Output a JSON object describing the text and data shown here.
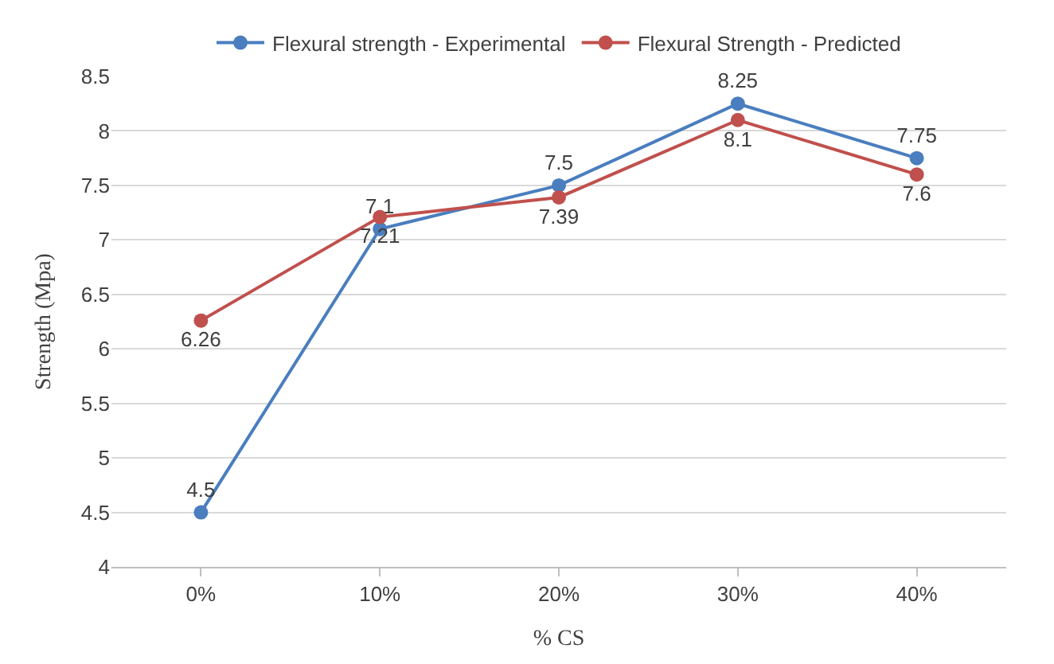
{
  "chart_data": {
    "type": "line",
    "xlabel": "% CS",
    "ylabel": "Strength (Mpa)",
    "categories": [
      "0%",
      "10%",
      "20%",
      "30%",
      "40%"
    ],
    "series": [
      {
        "name": "Flexural strength - Experimental",
        "color": "#4a7ebf",
        "values": [
          4.5,
          7.1,
          7.5,
          8.25,
          7.75
        ]
      },
      {
        "name": "Flexural Strength - Predicted",
        "color": "#c0504d",
        "values": [
          6.26,
          7.21,
          7.39,
          8.1,
          7.6
        ]
      }
    ],
    "ylim": [
      4,
      8.5
    ],
    "yticks": [
      4,
      4.5,
      5,
      5.5,
      6,
      6.5,
      7,
      7.5,
      8,
      8.5
    ],
    "grid": "y",
    "legend": "top",
    "marker": "circle",
    "line_style": "solid",
    "data_labels": true
  }
}
